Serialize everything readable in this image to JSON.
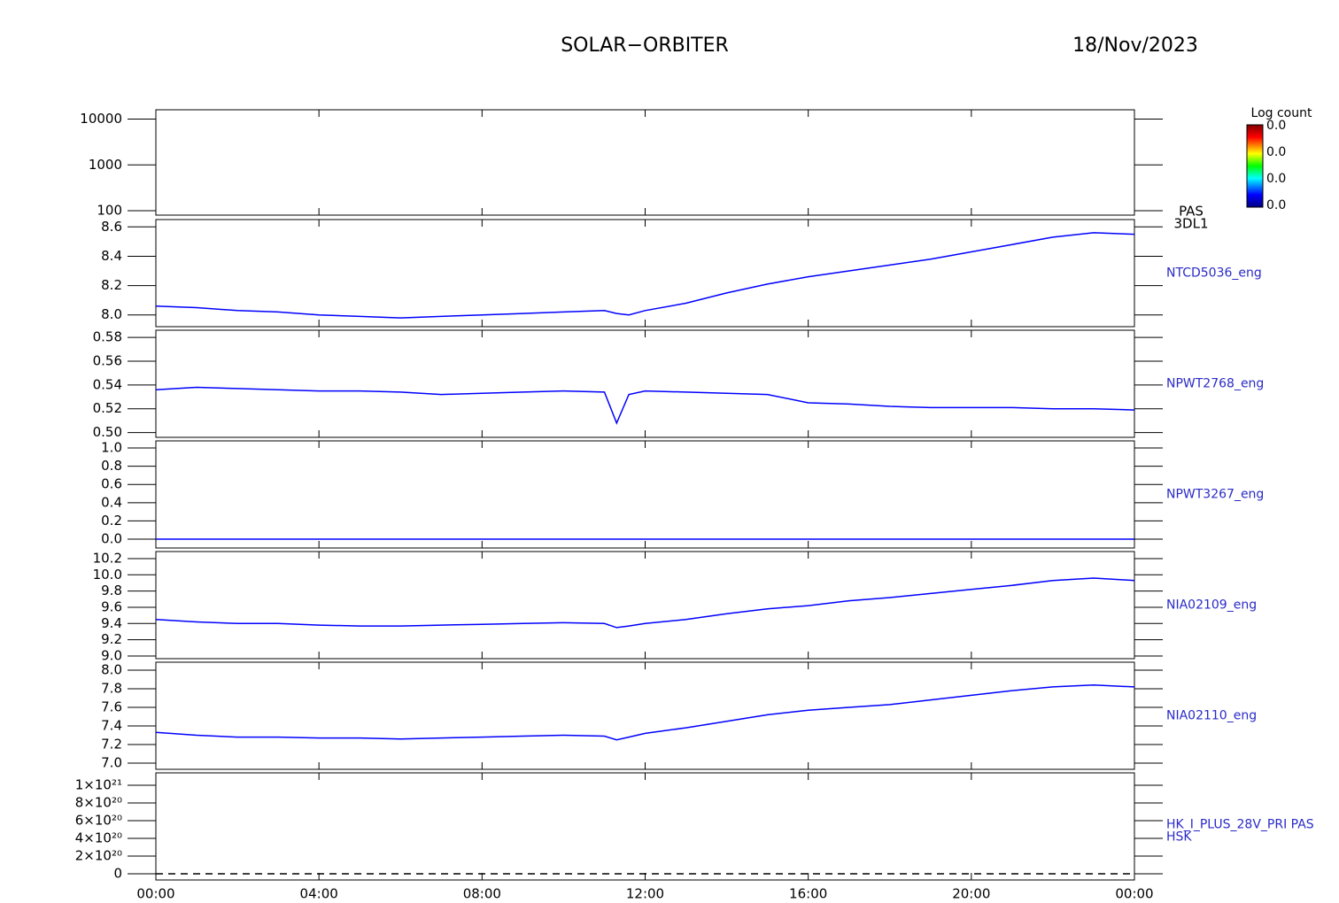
{
  "title": "SOLAR−ORBITER",
  "date": "18/Nov/2023",
  "colorbar": {
    "title": "Log count",
    "labels": [
      "0.0",
      "0.0",
      "0.0",
      "0.0"
    ]
  },
  "xlim": [
    0,
    24
  ],
  "xticks": [
    {
      "value": 0,
      "label": "00:00"
    },
    {
      "value": 4,
      "label": "04:00"
    },
    {
      "value": 8,
      "label": "08:00"
    },
    {
      "value": 12,
      "label": "12:00"
    },
    {
      "value": 16,
      "label": "16:00"
    },
    {
      "value": 20,
      "label": "20:00"
    },
    {
      "value": 24,
      "label": "00:00"
    }
  ],
  "chart_data": [
    {
      "type": "line",
      "log": true,
      "label": [
        "PAS",
        "3DL1"
      ],
      "ylim": [
        80,
        16000
      ],
      "yticks": [
        100,
        1000,
        10000
      ],
      "x": [],
      "series": []
    },
    {
      "type": "line",
      "label": [
        "NTCD5036_eng"
      ],
      "ylim": [
        7.92,
        8.65
      ],
      "yticks": [
        {
          "value": 8.0,
          "label": "8.0"
        },
        8.2,
        8.4,
        8.6
      ],
      "x": [
        0,
        1,
        2,
        3,
        4,
        5,
        6,
        7,
        8,
        9,
        10,
        11,
        11.3,
        11.6,
        12,
        13,
        14,
        15,
        16,
        17,
        18,
        19,
        20,
        21,
        22,
        23,
        24
      ],
      "series": [
        {
          "color": "#0000ff",
          "values": [
            8.06,
            8.05,
            8.03,
            8.02,
            8.0,
            7.99,
            7.98,
            7.99,
            8.0,
            8.01,
            8.02,
            8.03,
            8.01,
            8.0,
            8.03,
            8.08,
            8.15,
            8.21,
            8.26,
            8.3,
            8.34,
            8.38,
            8.43,
            8.48,
            8.53,
            8.56,
            8.55
          ]
        }
      ]
    },
    {
      "type": "line",
      "label": [
        "NPWT2768_eng"
      ],
      "ylim": [
        0.496,
        0.586
      ],
      "yticks": [
        {
          "value": 0.5,
          "label": "0.50"
        },
        0.52,
        0.54,
        0.56,
        0.58
      ],
      "x": [
        0,
        1,
        2,
        3,
        4,
        5,
        6,
        7,
        8,
        9,
        10,
        11,
        11.3,
        11.6,
        12,
        13,
        14,
        15,
        16,
        17,
        18,
        19,
        20,
        21,
        22,
        23,
        24
      ],
      "series": [
        {
          "color": "#0000ff",
          "values": [
            0.536,
            0.538,
            0.537,
            0.536,
            0.535,
            0.535,
            0.534,
            0.532,
            0.533,
            0.534,
            0.535,
            0.534,
            0.508,
            0.532,
            0.535,
            0.534,
            0.533,
            0.532,
            0.525,
            0.524,
            0.522,
            0.521,
            0.521,
            0.521,
            0.52,
            0.52,
            0.519
          ]
        }
      ]
    },
    {
      "type": "line",
      "label": [
        "NPWT3267_eng"
      ],
      "ylim": [
        -0.097,
        1.078
      ],
      "yticks": [
        {
          "value": 0,
          "label": "0.0"
        },
        0.2,
        0.4,
        0.6,
        0.8,
        {
          "value": 1,
          "label": "1.0"
        }
      ],
      "x": [
        0,
        4,
        8,
        12,
        16,
        20,
        24
      ],
      "series": [
        {
          "color": "#0000ff",
          "values": [
            0,
            0,
            0,
            0,
            0,
            0,
            0
          ]
        }
      ]
    },
    {
      "type": "line",
      "label": [
        "NIA02109_eng"
      ],
      "ylim": [
        8.967,
        10.287
      ],
      "yticks": [
        {
          "value": 9,
          "label": "9.0"
        },
        9.2,
        9.4,
        9.6,
        9.8,
        {
          "value": 10,
          "label": "10.0"
        },
        10.2
      ],
      "x": [
        0,
        1,
        2,
        3,
        4,
        5,
        6,
        7,
        8,
        9,
        10,
        11,
        11.3,
        11.6,
        12,
        13,
        14,
        15,
        16,
        17,
        18,
        19,
        20,
        21,
        22,
        23,
        24
      ],
      "series": [
        {
          "color": "#0000ff",
          "values": [
            9.45,
            9.42,
            9.4,
            9.4,
            9.38,
            9.37,
            9.37,
            9.38,
            9.39,
            9.4,
            9.41,
            9.4,
            9.35,
            9.37,
            9.4,
            9.45,
            9.52,
            9.58,
            9.62,
            9.68,
            9.72,
            9.77,
            9.82,
            9.87,
            9.93,
            9.96,
            9.93
          ]
        }
      ]
    },
    {
      "type": "line",
      "label": [
        "NIA02110_eng"
      ],
      "ylim": [
        6.933,
        8.086
      ],
      "yticks": [
        {
          "value": 7,
          "label": "7.0"
        },
        7.2,
        7.4,
        7.6,
        7.8,
        {
          "value": 8,
          "label": "8.0"
        }
      ],
      "x": [
        0,
        1,
        2,
        3,
        4,
        5,
        6,
        7,
        8,
        9,
        10,
        11,
        11.3,
        11.6,
        12,
        13,
        14,
        15,
        16,
        17,
        18,
        19,
        20,
        21,
        22,
        23,
        24
      ],
      "series": [
        {
          "color": "#0000ff",
          "values": [
            7.33,
            7.3,
            7.28,
            7.28,
            7.27,
            7.27,
            7.26,
            7.27,
            7.28,
            7.29,
            7.3,
            7.29,
            7.25,
            7.28,
            7.32,
            7.38,
            7.45,
            7.52,
            7.57,
            7.6,
            7.63,
            7.68,
            7.73,
            7.78,
            7.82,
            7.84,
            7.82
          ]
        }
      ]
    },
    {
      "type": "line",
      "dashed": true,
      "label": [
        "HK_I_PLUS_28V_PRI PAS",
        "HSK"
      ],
      "ylim": [
        -7e+19,
        1.14e+21
      ],
      "yticks": [
        0,
        {
          "value": 2e+20,
          "label": "2×10²⁰"
        },
        {
          "value": 4e+20,
          "label": "4×10²⁰"
        },
        {
          "value": 6e+20,
          "label": "6×10²⁰"
        },
        {
          "value": 8e+20,
          "label": "8×10²⁰"
        },
        {
          "value": 1e+21,
          "label": "1×10²¹"
        }
      ],
      "x": [
        0,
        24
      ],
      "series": [
        {
          "color": "#000000",
          "values": [
            0,
            0
          ]
        }
      ]
    }
  ]
}
